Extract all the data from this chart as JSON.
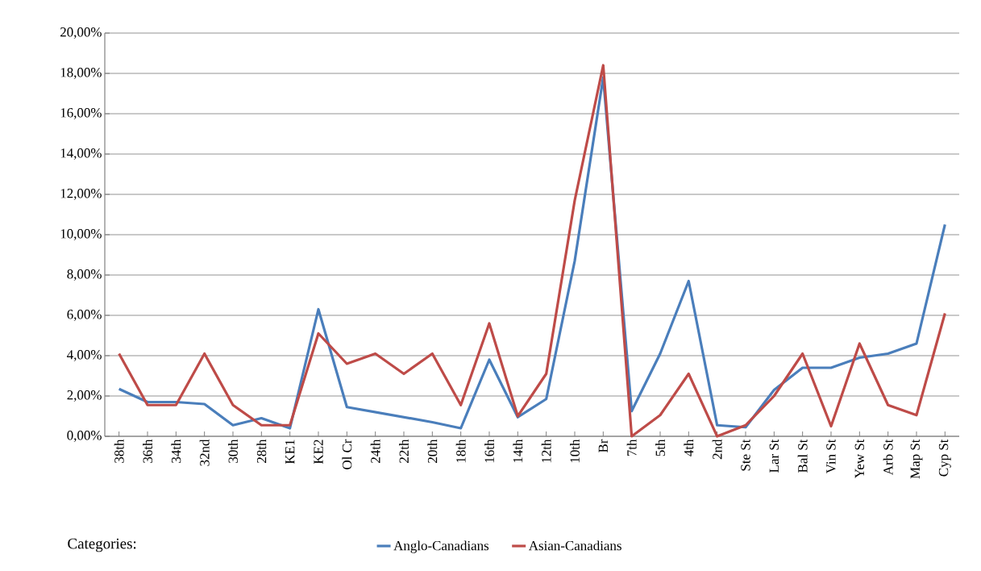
{
  "chart_data": {
    "type": "line",
    "categories": [
      "38th",
      "36th",
      "34th",
      "32nd",
      "30th",
      "28th",
      "KE1",
      "KE2",
      "Ol Cr",
      "24th",
      "22th",
      "20th",
      "18th",
      "16th",
      "14th",
      "12th",
      "10th",
      "Br",
      "7th",
      "5th",
      "4th",
      "2nd",
      "Ste St",
      "Lar St",
      "Bal St",
      "Vin St",
      "Yew St",
      "Arb St",
      "Map St",
      "Cyp St"
    ],
    "series": [
      {
        "name": "Anglo-Canadians",
        "color": "#4a7ebb",
        "values": [
          2.35,
          1.7,
          1.7,
          1.6,
          0.55,
          0.9,
          0.4,
          6.3,
          1.45,
          1.2,
          0.95,
          0.7,
          0.4,
          3.8,
          0.95,
          1.85,
          8.7,
          17.8,
          1.25,
          4.1,
          7.7,
          0.55,
          0.45,
          2.3,
          3.4,
          3.4,
          3.9,
          4.1,
          4.6,
          10.5
        ]
      },
      {
        "name": "Asian-Canadians",
        "color": "#be4b48",
        "values": [
          4.1,
          1.55,
          1.55,
          4.1,
          1.55,
          0.55,
          0.55,
          5.1,
          3.6,
          4.1,
          3.1,
          4.1,
          1.55,
          5.6,
          1.0,
          3.1,
          11.7,
          18.4,
          0.0,
          1.05,
          3.1,
          0.0,
          0.55,
          2.0,
          4.1,
          0.5,
          4.6,
          1.55,
          1.05,
          6.1
        ]
      }
    ],
    "ylim": [
      0,
      20
    ],
    "yticks": [
      {
        "value": 0,
        "label": "0,00%"
      },
      {
        "value": 2,
        "label": "2,00%"
      },
      {
        "value": 4,
        "label": "4,00%"
      },
      {
        "value": 6,
        "label": "6,00%"
      },
      {
        "value": 8,
        "label": "8,00%"
      },
      {
        "value": 10,
        "label": "10,00%"
      },
      {
        "value": 12,
        "label": "12,00%"
      },
      {
        "value": 14,
        "label": "14,00%"
      },
      {
        "value": 16,
        "label": "16,00%"
      },
      {
        "value": 18,
        "label": "18,00%"
      },
      {
        "value": 20,
        "label": "20,00%"
      }
    ],
    "grid": "y",
    "legend": "bottom",
    "legend_title": "Categories:",
    "marker": "none",
    "line_style": "solid"
  }
}
